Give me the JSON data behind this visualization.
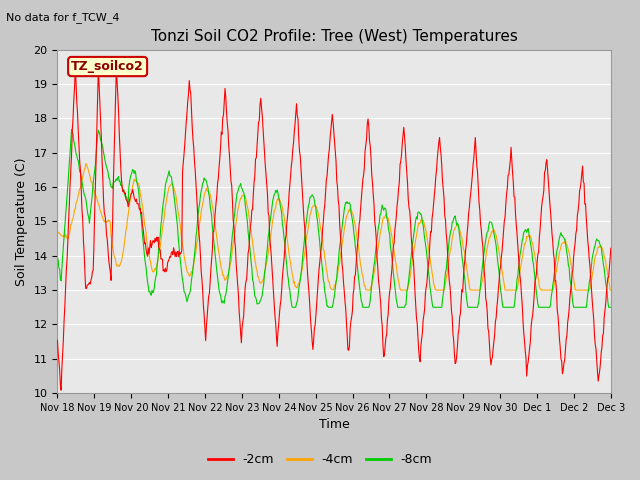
{
  "title": "Tonzi Soil CO2 Profile: Tree (West) Temperatures",
  "subtitle": "No data for f_TCW_4",
  "xlabel": "Time",
  "ylabel": "Soil Temperature (C)",
  "ylim": [
    10.0,
    20.0
  ],
  "yticks": [
    10.0,
    11.0,
    12.0,
    13.0,
    14.0,
    15.0,
    16.0,
    17.0,
    18.0,
    19.0,
    20.0
  ],
  "xtick_labels": [
    "Nov 18",
    "Nov 19",
    "Nov 20",
    "Nov 21",
    "Nov 22",
    "Nov 23",
    "Nov 24",
    "Nov 25",
    "Nov 26",
    "Nov 27",
    "Nov 28",
    "Nov 29",
    "Nov 30",
    "Dec 1",
    "Dec 2",
    "Dec 3"
  ],
  "legend_label": "TZ_soilco2",
  "series_labels": [
    "-2cm",
    "-4cm",
    "-8cm"
  ],
  "series_colors": [
    "#ff0000",
    "#ffa500",
    "#00cc00"
  ],
  "background_color": "#e8e8e8",
  "grid_color": "#ffffff",
  "title_fontsize": 11,
  "axis_fontsize": 9,
  "tick_fontsize": 8,
  "legend_fontsize": 9,
  "subtitle_fontsize": 8
}
